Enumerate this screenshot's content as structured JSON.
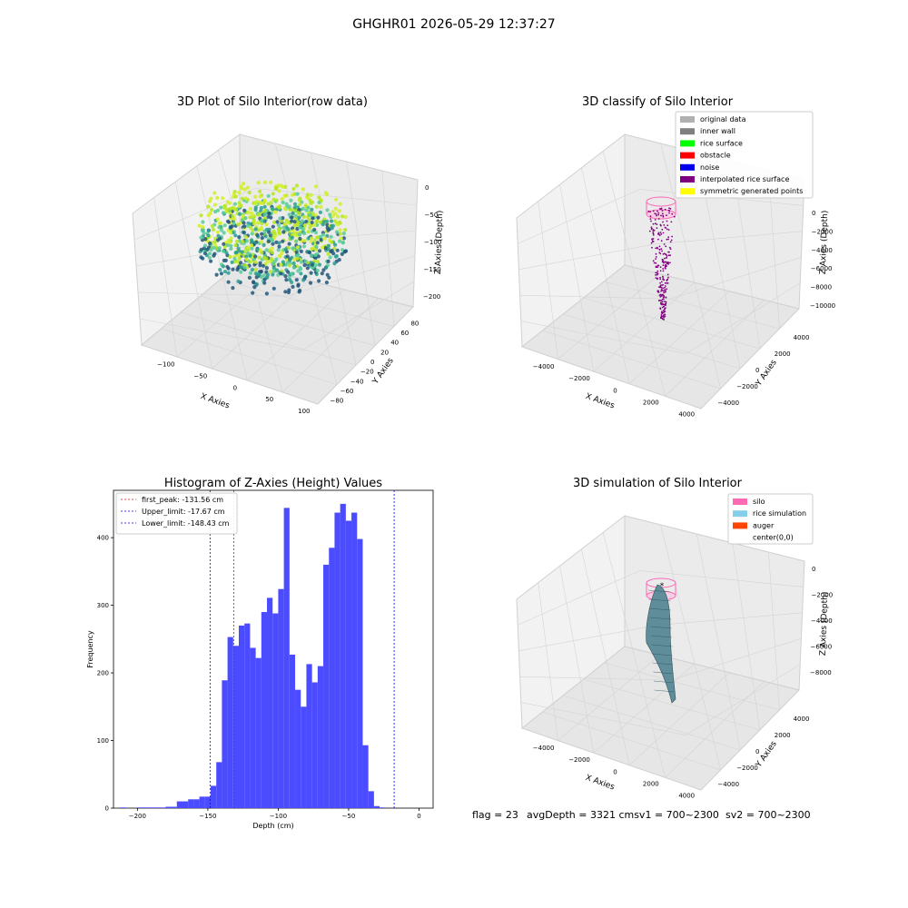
{
  "suptitle": "GHGHR01 2026-05-29 12:37:27",
  "footer": {
    "flag": "flag = 23",
    "avg": "avgDepth = 3321 cmsv1 = 700~2300",
    "sv2": "sv2 = 700~2300"
  },
  "chart_data": [
    {
      "type": "scatter",
      "title": "3D Plot of Silo Interior(row data)",
      "xlabel": "X Axies",
      "ylabel": "Y Axies",
      "zlabel": "Z Axies (Depth)",
      "x_ticks": [
        "−100",
        "−50",
        "0",
        "50",
        "100"
      ],
      "y_ticks": [
        "−80",
        "−60",
        "−40",
        "−20",
        "0",
        "20",
        "40",
        "60",
        "80"
      ],
      "z_ticks": [
        "0",
        "−50",
        "−100",
        "−150",
        "−200"
      ],
      "colormap": [
        "#22577a",
        "#2a9d8f",
        "#57cc99",
        "#b5e61d",
        "#d4ee2a"
      ]
    },
    {
      "type": "scatter",
      "title": "3D classify of Silo Interior",
      "xlabel": "X Axies",
      "ylabel": "Y Axies",
      "zlabel": "Z Axies (Depth)",
      "x_ticks": [
        "−4000",
        "−2000",
        "0",
        "2000",
        "4000"
      ],
      "y_ticks": [
        "−4000",
        "−2000",
        "0",
        "2000",
        "4000"
      ],
      "z_ticks": [
        "0",
        "−2000",
        "−4000",
        "−6000",
        "−8000",
        "−10000"
      ],
      "legend": [
        {
          "label": "original data",
          "color": "#b0b0b0"
        },
        {
          "label": "inner wall",
          "color": "#808080"
        },
        {
          "label": "rice surface",
          "color": "#00ff00"
        },
        {
          "label": "obstacle",
          "color": "#ff0000"
        },
        {
          "label": "noise",
          "color": "#0000ee"
        },
        {
          "label": "interpolated rice surface",
          "color": "#800080"
        },
        {
          "label": "symmetric generated points",
          "color": "#ffff00"
        }
      ]
    },
    {
      "type": "bar",
      "title": "Histogram of Z-Axies (Height) Values",
      "xlabel": "Depth (cm)",
      "ylabel": "Frequency",
      "xlim": [
        -217,
        10
      ],
      "ylim": [
        0,
        470
      ],
      "x_ticks": [
        -200,
        -150,
        -100,
        -50,
        0
      ],
      "y_ticks": [
        0,
        100,
        200,
        300,
        400
      ],
      "bin_width": 4,
      "bins_start": [
        -212,
        -208,
        -204,
        -200,
        -196,
        -192,
        -188,
        -184,
        -180,
        -176,
        -172,
        -168,
        -164,
        -160,
        -156,
        -152,
        -148,
        -144,
        -140,
        -136,
        -132,
        -128,
        -124,
        -120,
        -116,
        -112,
        -108,
        -104,
        -100,
        -96,
        -92,
        -88,
        -84,
        -80,
        -76,
        -72,
        -68,
        -64,
        -60,
        -56,
        -52,
        -48,
        -44,
        -40,
        -36,
        -32,
        -28,
        -24,
        -20,
        -16,
        -12,
        -8,
        -4
      ],
      "values": [
        1,
        0,
        0,
        1,
        1,
        1,
        1,
        1,
        2,
        2,
        10,
        10,
        13,
        13,
        17,
        17,
        33,
        68,
        189,
        253,
        240,
        270,
        273,
        237,
        222,
        290,
        311,
        288,
        324,
        444,
        227,
        175,
        150,
        213,
        186,
        210,
        360,
        385,
        437,
        450,
        425,
        437,
        398,
        93,
        25,
        3,
        1,
        0,
        0,
        0,
        0,
        0,
        0
      ],
      "bar_color": "#4b4bff",
      "lines": [
        {
          "label": "first_peak: -131.56 cm",
          "x": -131.56,
          "color": "#ff0000"
        },
        {
          "label": "Upper_limit: -17.67 cm",
          "x": -17.67,
          "color": "#0000ff"
        },
        {
          "label": "Lower_limit: -148.43 cm",
          "x": -148.43,
          "color": "#0000ff"
        }
      ]
    },
    {
      "type": "area",
      "title": "3D simulation of Silo Interior",
      "xlabel": "X Axies",
      "ylabel": "Y Axies",
      "zlabel": "Z Axies (Depth)",
      "x_ticks": [
        "−4000",
        "−2000",
        "0",
        "2000",
        "4000"
      ],
      "y_ticks": [
        "−4000",
        "−2000",
        "0",
        "2000",
        "4000"
      ],
      "z_ticks": [
        "0",
        "−2000",
        "−4000",
        "−6000",
        "−8000"
      ],
      "legend": [
        {
          "label": "silo",
          "color": "#ff69b4"
        },
        {
          "label": "rice simulation",
          "color": "#87ceeb"
        },
        {
          "label": "auger",
          "color": "#ff4500"
        },
        {
          "label": "center(0,0)",
          "color": "#ffffff"
        }
      ]
    }
  ]
}
